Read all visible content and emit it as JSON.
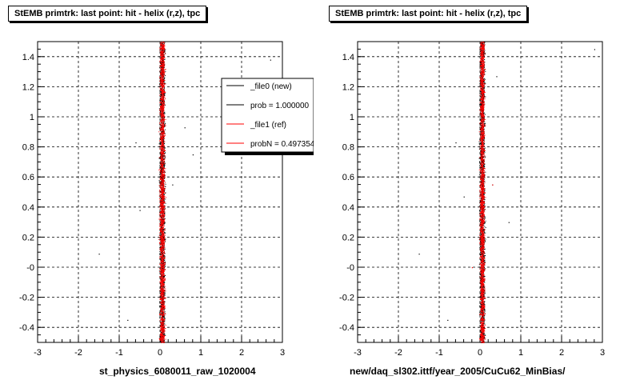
{
  "chart_data": [
    {
      "type": "scatter",
      "title": "StEMB primtrk: last point: hit - helix (r,z), tpc",
      "xlabel": "st_physics_6080011_raw_1020004",
      "ylabel": "",
      "xlim": [
        -3,
        3
      ],
      "ylim": [
        -0.5,
        1.5
      ],
      "x_ticks": [
        "-3",
        "-2",
        "-1",
        "0",
        "1",
        "2",
        "3"
      ],
      "y_ticks": [
        "-0.4",
        "-0.2",
        "-0",
        "0.2",
        "0.4",
        "0.6",
        "0.8",
        "1",
        "1.2",
        "1.4"
      ],
      "grid": true,
      "series": [
        {
          "name": "_file0 (new)",
          "color": "#000000",
          "band_center_x": 0.05,
          "band_halfwidth_x": 0.09,
          "outliers": [
            [
              -1.5,
              0.09
            ],
            [
              -0.6,
              0.83
            ],
            [
              -0.5,
              0.38
            ],
            [
              0.6,
              0.93
            ],
            [
              0.8,
              0.75
            ],
            [
              2.7,
              1.38
            ],
            [
              -0.8,
              -0.35
            ],
            [
              0.3,
              0.55
            ]
          ]
        },
        {
          "name": "_file1 (ref)",
          "color": "#ff0000",
          "band_center_x": 0.05,
          "band_halfwidth_x": 0.09,
          "outliers": []
        }
      ],
      "legend": {
        "placement": "top-right",
        "entries": [
          {
            "label": "_file0 (new)",
            "color": "#000000"
          },
          {
            "label": "prob = 1.000000",
            "color": "#000000"
          },
          {
            "label": "_file1 (ref)",
            "color": "#ff0000"
          },
          {
            "label": "probN = 0.497354",
            "color": "#ff0000"
          }
        ]
      }
    },
    {
      "type": "scatter",
      "title": "StEMB primtrk: last point: hit - helix (r,z), tpc",
      "xlabel": "new/daq_sl302.ittf/year_2005/CuCu62_MinBias/",
      "ylabel": "",
      "xlim": [
        -3,
        3
      ],
      "ylim": [
        -0.5,
        1.5
      ],
      "x_ticks": [
        "-3",
        "-2",
        "-1",
        "0",
        "1",
        "2",
        "3"
      ],
      "y_ticks": [
        "-0.4",
        "-0.2",
        "-0",
        "0.2",
        "0.4",
        "0.6",
        "0.8",
        "1",
        "1.2",
        "1.4"
      ],
      "grid": true,
      "series": [
        {
          "name": "_file0 (new)",
          "color": "#000000",
          "band_center_x": 0.05,
          "band_halfwidth_x": 0.09,
          "outliers": [
            [
              -1.5,
              0.09
            ],
            [
              -0.6,
              0.83
            ],
            [
              -0.4,
              0.47
            ],
            [
              0.4,
              1.27
            ],
            [
              0.3,
              0.55
            ],
            [
              -0.8,
              -0.35
            ],
            [
              2.8,
              1.45
            ],
            [
              0.7,
              0.3
            ]
          ]
        },
        {
          "name": "_file1 (ref)",
          "color": "#ff0000",
          "band_center_x": 0.05,
          "band_halfwidth_x": 0.08,
          "outliers": [
            [
              -0.2,
              0.0
            ],
            [
              0.3,
              0.55
            ]
          ]
        }
      ]
    }
  ]
}
